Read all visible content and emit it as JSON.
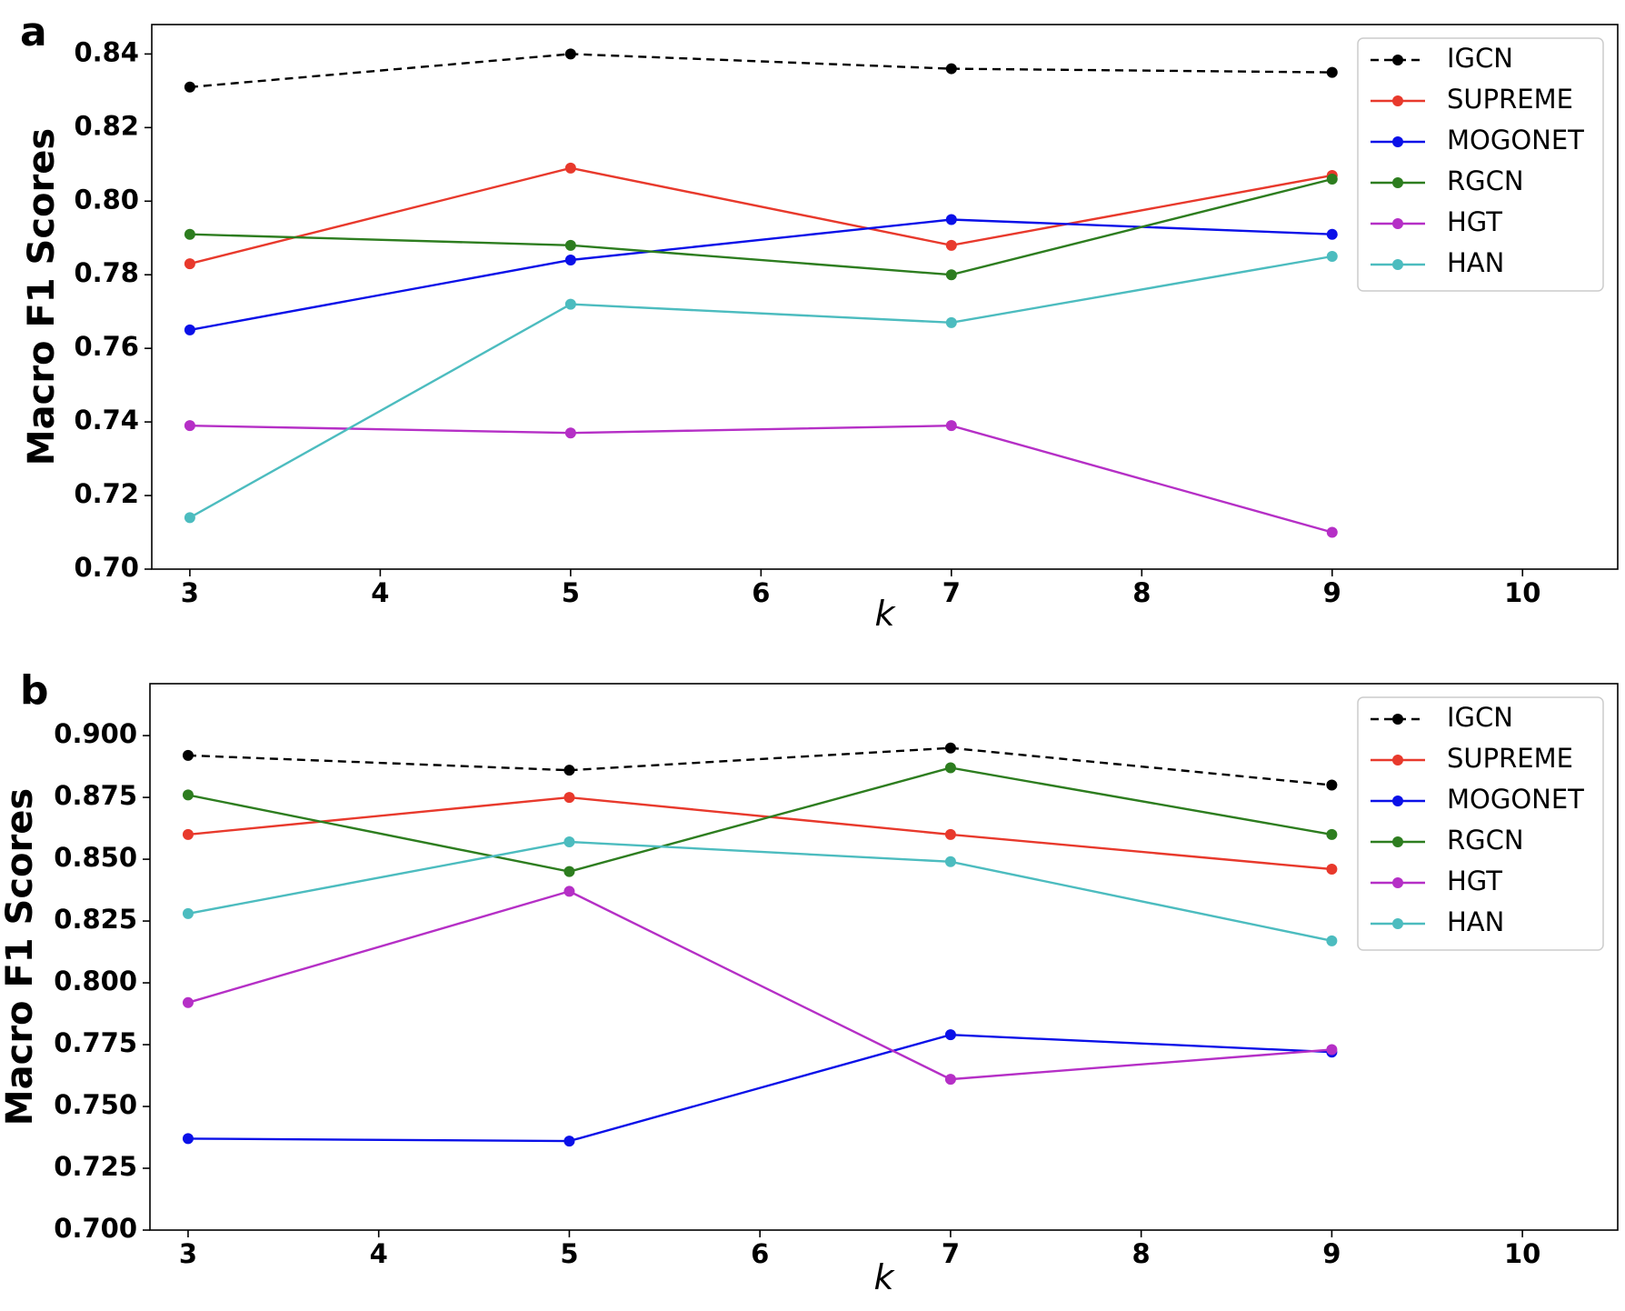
{
  "figure": {
    "panels": [
      "a",
      "b"
    ]
  },
  "chart_data": [
    {
      "type": "line",
      "panel_label": "a",
      "xlabel": "k",
      "ylabel": "Macro F1 Scores",
      "xlim": [
        2.8,
        10.5
      ],
      "ylim": [
        0.7,
        0.848
      ],
      "xticks": [
        3,
        4,
        5,
        6,
        7,
        8,
        9,
        10
      ],
      "yticks": [
        0.7,
        0.72,
        0.74,
        0.76,
        0.78,
        0.8,
        0.82,
        0.84
      ],
      "ytick_labels": [
        "0.70",
        "0.72",
        "0.74",
        "0.76",
        "0.78",
        "0.80",
        "0.82",
        "0.84"
      ],
      "legend_position": "top-right",
      "x": [
        3,
        5,
        7,
        9
      ],
      "series": [
        {
          "name": "IGCN",
          "color": "#000000",
          "dashed": true,
          "values": [
            0.831,
            0.84,
            0.836,
            0.835
          ]
        },
        {
          "name": "SUPREME",
          "color": "#e8392c",
          "dashed": false,
          "values": [
            0.783,
            0.809,
            0.788,
            0.807
          ]
        },
        {
          "name": "MOGONET",
          "color": "#0a10e8",
          "dashed": false,
          "values": [
            0.765,
            0.784,
            0.795,
            0.791
          ]
        },
        {
          "name": "RGCN",
          "color": "#2d7d1f",
          "dashed": false,
          "values": [
            0.791,
            0.788,
            0.78,
            0.806
          ]
        },
        {
          "name": "HGT",
          "color": "#b52fc6",
          "dashed": false,
          "values": [
            0.739,
            0.737,
            0.739,
            0.71
          ]
        },
        {
          "name": "HAN",
          "color": "#4cbcbf",
          "dashed": false,
          "values": [
            0.714,
            0.772,
            0.767,
            0.785
          ]
        }
      ]
    },
    {
      "type": "line",
      "panel_label": "b",
      "xlabel": "k",
      "ylabel": "Macro F1 Scores",
      "xlim": [
        2.8,
        10.5
      ],
      "ylim": [
        0.7,
        0.921
      ],
      "xticks": [
        3,
        4,
        5,
        6,
        7,
        8,
        9,
        10
      ],
      "yticks": [
        0.7,
        0.725,
        0.75,
        0.775,
        0.8,
        0.825,
        0.85,
        0.875,
        0.9
      ],
      "ytick_labels": [
        "0.700",
        "0.725",
        "0.750",
        "0.775",
        "0.800",
        "0.825",
        "0.850",
        "0.875",
        "0.900"
      ],
      "legend_position": "top-right",
      "x": [
        3,
        5,
        7,
        9
      ],
      "series": [
        {
          "name": "IGCN",
          "color": "#000000",
          "dashed": true,
          "values": [
            0.892,
            0.886,
            0.895,
            0.88
          ]
        },
        {
          "name": "SUPREME",
          "color": "#e8392c",
          "dashed": false,
          "values": [
            0.86,
            0.875,
            0.86,
            0.846
          ]
        },
        {
          "name": "MOGONET",
          "color": "#0a10e8",
          "dashed": false,
          "values": [
            0.737,
            0.736,
            0.779,
            0.772
          ]
        },
        {
          "name": "RGCN",
          "color": "#2d7d1f",
          "dashed": false,
          "values": [
            0.876,
            0.845,
            0.887,
            0.86
          ]
        },
        {
          "name": "HGT",
          "color": "#b52fc6",
          "dashed": false,
          "values": [
            0.792,
            0.837,
            0.761,
            0.773
          ]
        },
        {
          "name": "HAN",
          "color": "#4cbcbf",
          "dashed": false,
          "values": [
            0.828,
            0.857,
            0.849,
            0.817
          ]
        }
      ]
    }
  ]
}
